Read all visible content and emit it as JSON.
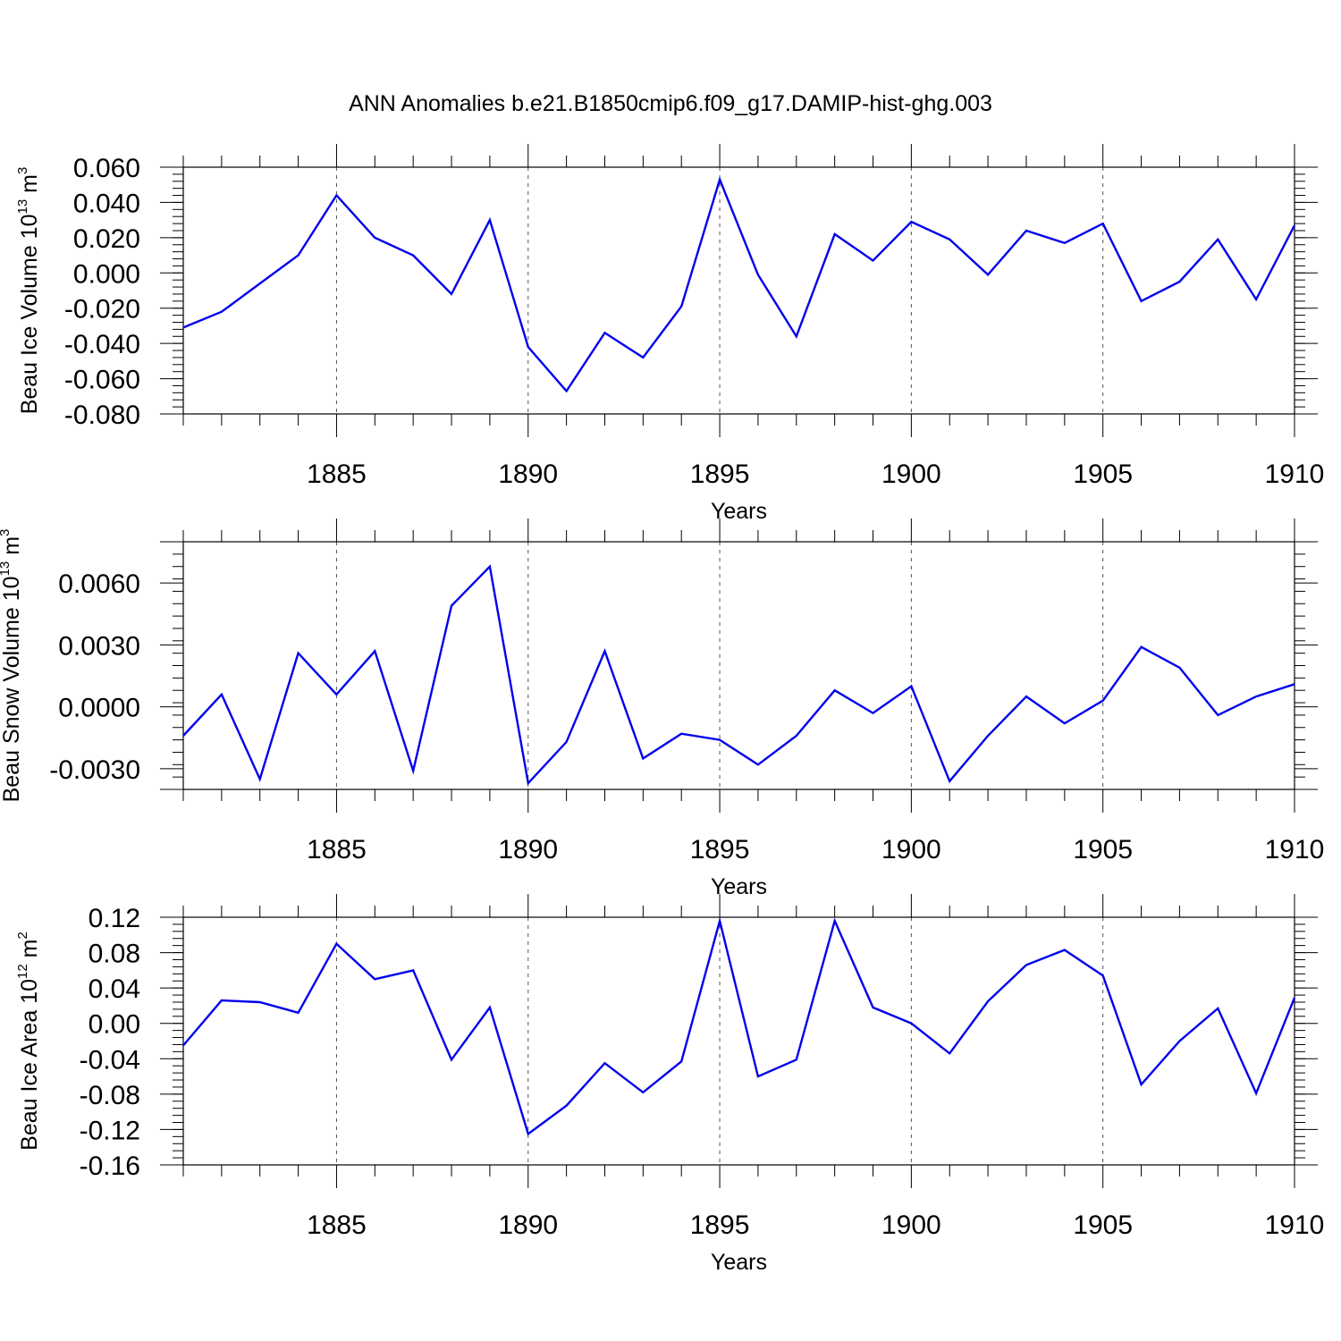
{
  "figure": {
    "title": "ANN Anomalies b.e21.B1850cmip6.f09_g17.DAMIP-hist-ghg.003"
  },
  "chart_data": [
    {
      "type": "line",
      "title": "",
      "xlabel": "Years",
      "ylabel": {
        "text": "Beau Ice Volume 10",
        "exp": "13",
        "unit": " m",
        "unit_exp": "3"
      },
      "xlim": [
        1881,
        1910
      ],
      "ylim": [
        -0.08,
        0.06
      ],
      "grid": "vertical dashed at major x ticks",
      "line_color": "#0000ee",
      "x_ticks": [
        1885,
        1890,
        1895,
        1900,
        1905,
        1910
      ],
      "y_ticks": [
        "0.060",
        "0.040",
        "0.020",
        "0.000",
        "-0.020",
        "-0.040",
        "-0.060",
        "-0.080"
      ],
      "x": [
        1881,
        1882,
        1883,
        1884,
        1885,
        1886,
        1887,
        1888,
        1889,
        1890,
        1891,
        1892,
        1893,
        1894,
        1895,
        1896,
        1897,
        1898,
        1899,
        1900,
        1901,
        1902,
        1903,
        1904,
        1905,
        1906,
        1907,
        1908,
        1909,
        1910
      ],
      "values": [
        -0.031,
        -0.022,
        -0.006,
        0.01,
        0.044,
        0.02,
        0.01,
        -0.012,
        0.03,
        -0.042,
        -0.067,
        -0.034,
        -0.048,
        -0.019,
        0.053,
        -0.001,
        -0.036,
        0.022,
        0.007,
        0.029,
        0.019,
        -0.001,
        0.024,
        0.017,
        0.028,
        -0.016,
        -0.005,
        0.019,
        -0.015,
        0.027
      ]
    },
    {
      "type": "line",
      "title": "",
      "xlabel": "Years",
      "ylabel": {
        "text": "Beau Snow Volume 10",
        "exp": "13",
        "unit": " m",
        "unit_exp": "3"
      },
      "xlim": [
        1881,
        1910
      ],
      "ylim": [
        -0.004,
        0.008
      ],
      "grid": "vertical dashed at major x ticks",
      "line_color": "#0000ee",
      "x_ticks": [
        1885,
        1890,
        1895,
        1900,
        1905,
        1910
      ],
      "y_ticks": [
        "0.0060",
        "0.0030",
        "0.0000",
        "-0.0030"
      ],
      "y_tick_values": [
        0.006,
        0.003,
        0.0,
        -0.003
      ],
      "x": [
        1881,
        1882,
        1883,
        1884,
        1885,
        1886,
        1887,
        1888,
        1889,
        1890,
        1891,
        1892,
        1893,
        1894,
        1895,
        1896,
        1897,
        1898,
        1899,
        1900,
        1901,
        1902,
        1903,
        1904,
        1905,
        1906,
        1907,
        1908,
        1909,
        1910
      ],
      "values": [
        -0.0014,
        0.0006,
        -0.0035,
        0.0026,
        0.0006,
        0.0027,
        -0.0031,
        0.0049,
        0.0068,
        -0.0037,
        -0.0017,
        0.0027,
        -0.0025,
        -0.0013,
        -0.0016,
        -0.0028,
        -0.0014,
        0.0008,
        -0.0003,
        0.001,
        -0.0036,
        -0.0014,
        0.0005,
        -0.0008,
        0.0003,
        0.0029,
        0.0019,
        -0.0004,
        0.0005,
        0.0011
      ]
    },
    {
      "type": "line",
      "title": "",
      "xlabel": "Years",
      "ylabel": {
        "text": "Beau Ice Area 10",
        "exp": "12",
        "unit": " m",
        "unit_exp": "2"
      },
      "xlim": [
        1881,
        1910
      ],
      "ylim": [
        -0.16,
        0.12
      ],
      "grid": "vertical dashed at major x ticks",
      "line_color": "#0000ee",
      "x_ticks": [
        1885,
        1890,
        1895,
        1900,
        1905,
        1910
      ],
      "y_ticks": [
        "0.12",
        "0.08",
        "0.04",
        "0.00",
        "-0.04",
        "-0.08",
        "-0.12",
        "-0.16"
      ],
      "x": [
        1881,
        1882,
        1883,
        1884,
        1885,
        1886,
        1887,
        1888,
        1889,
        1890,
        1891,
        1892,
        1893,
        1894,
        1895,
        1896,
        1897,
        1898,
        1899,
        1900,
        1901,
        1902,
        1903,
        1904,
        1905,
        1906,
        1907,
        1908,
        1909,
        1910
      ],
      "values": [
        -0.025,
        0.026,
        0.024,
        0.012,
        0.09,
        0.05,
        0.06,
        -0.041,
        0.018,
        -0.125,
        -0.093,
        -0.045,
        -0.078,
        -0.043,
        0.116,
        -0.06,
        -0.041,
        0.116,
        0.018,
        0.0,
        -0.034,
        0.025,
        0.066,
        0.083,
        0.054,
        -0.069,
        -0.02,
        0.017,
        -0.079,
        0.029
      ]
    }
  ]
}
